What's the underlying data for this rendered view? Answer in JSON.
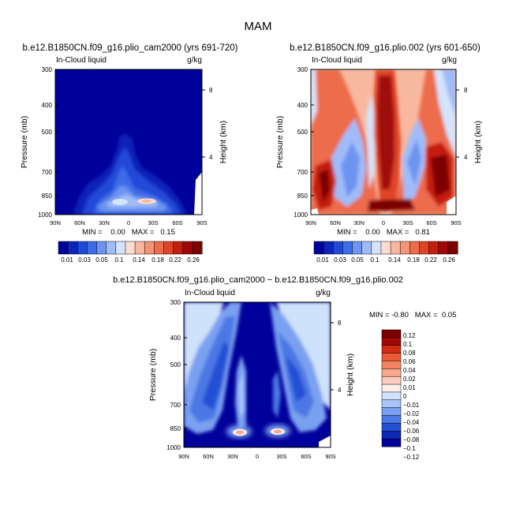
{
  "figure": {
    "title": "MAM",
    "diff_min_max": "MIN = -0.80   MAX =  0.05"
  },
  "chart_data": [
    {
      "type": "heatmap",
      "title": "b.e12.B1850CN.f09_g16.plio_cam2000 (yrs 691-720)",
      "variable": "In-Cloud liquid",
      "units": "g/kg",
      "xlabel": "",
      "ylabel": "Pressure (mb)",
      "ylabel_right": "Height (km)",
      "x_ticks": [
        "90N",
        "60N",
        "30N",
        "0",
        "30S",
        "60S",
        "90S"
      ],
      "y_ticks": [
        "300",
        "400",
        "500",
        "700",
        "850",
        "1000"
      ],
      "height_ticks": [
        "8",
        "4"
      ],
      "ylim": [
        1000,
        300
      ],
      "min_max": "MIN =    0.00   MAX =   0.15",
      "min": 0.0,
      "max": 0.15,
      "colorbar_labels": [
        "0.01",
        "0.03",
        "0.05",
        "0.1",
        "0.14",
        "0.18",
        "0.22",
        "0.26"
      ],
      "levels": [
        0,
        0.01,
        0.02,
        0.03,
        0.04,
        0.05,
        0.07,
        0.1,
        0.12,
        0.14,
        0.16,
        0.18,
        0.2,
        0.22,
        0.24,
        0.26
      ]
    },
    {
      "type": "heatmap",
      "title": "b.e12.B1850CN.f09_g16.plio.002 (yrs 601-650)",
      "variable": "In-Cloud liquid",
      "units": "g/kg",
      "xlabel": "",
      "ylabel": "Pressure (mb)",
      "ylabel_right": "Height (km)",
      "x_ticks": [
        "90N",
        "60N",
        "30N",
        "0",
        "30S",
        "60S",
        "90S"
      ],
      "y_ticks": [
        "300",
        "400",
        "500",
        "700",
        "850",
        "1000"
      ],
      "height_ticks": [
        "8",
        "4"
      ],
      "ylim": [
        1000,
        300
      ],
      "min_max": "MIN =    0.00   MAX =   0.81",
      "min": 0.0,
      "max": 0.81,
      "colorbar_labels": [
        "0.01",
        "0.03",
        "0.05",
        "0.1",
        "0.14",
        "0.18",
        "0.22",
        "0.26"
      ],
      "levels": [
        0,
        0.01,
        0.02,
        0.03,
        0.04,
        0.05,
        0.07,
        0.1,
        0.12,
        0.14,
        0.16,
        0.18,
        0.2,
        0.22,
        0.24,
        0.26
      ]
    },
    {
      "type": "heatmap",
      "title": "b.e12.B1850CN.f09_g16.plio_cam2000 − b.e12.B1850CN.f09_g16.plio.002",
      "variable": "In-Cloud liquid",
      "units": "g/kg",
      "xlabel": "",
      "ylabel": "Pressure (mb)",
      "ylabel_right": "Height (km)",
      "x_ticks": [
        "90N",
        "60N",
        "30N",
        "0",
        "30S",
        "60S",
        "90S"
      ],
      "y_ticks": [
        "300",
        "400",
        "500",
        "700",
        "850",
        "1000"
      ],
      "height_ticks": [
        "8",
        "4"
      ],
      "ylim": [
        1000,
        300
      ],
      "min": -0.8,
      "max": 0.05,
      "colorbar_labels": [
        "0.12",
        "0.1",
        "0.08",
        "0.06",
        "0.04",
        "0.02",
        "0.01",
        "0",
        "−0.01",
        "−0.02",
        "−0.04",
        "−0.06",
        "−0.08",
        "−0.1",
        "−0.12"
      ],
      "levels": [
        0.12,
        0.1,
        0.08,
        0.06,
        0.04,
        0.02,
        0.01,
        0,
        -0.01,
        -0.02,
        -0.04,
        -0.06,
        -0.08,
        -0.1,
        -0.12
      ]
    }
  ],
  "palettes": {
    "sequential": [
      "#00009a",
      "#0c24b8",
      "#2048d8",
      "#3c6ce8",
      "#6c94f0",
      "#a0bcf8",
      "#d4e4fc",
      "#fcdcd0",
      "#f8b8a0",
      "#f49474",
      "#ec6c4c",
      "#e04428",
      "#c41e10",
      "#a00808",
      "#7c0000"
    ],
    "diff": [
      "#7c0000",
      "#a00808",
      "#d02c14",
      "#ec5a34",
      "#f48460",
      "#f8a88c",
      "#fccabc",
      "#fceee8",
      "#cfe2fc",
      "#a8c4f8",
      "#7aa0f0",
      "#4c78e4",
      "#2450d4",
      "#0c28b4",
      "#00009a"
    ],
    "background_blue": "#00009a"
  }
}
